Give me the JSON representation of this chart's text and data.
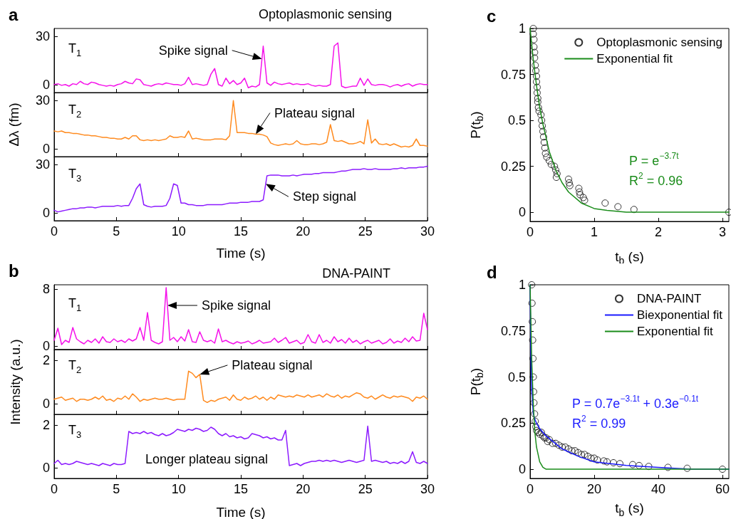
{
  "chart_data": [
    {
      "type": "line",
      "title": "Optoplasmonic sensing",
      "annotations": [
        "a",
        "T$_{1}$",
        {
          "text": "Spike signal",
          "x": 16.7,
          "y": 16
        }
      ],
      "x": [
        0,
        0.3,
        0.6,
        0.9,
        1.2,
        1.5,
        1.8,
        2.1,
        2.4,
        2.7,
        3,
        3.3,
        3.6,
        3.9,
        4.2,
        4.5,
        4.8,
        5.1,
        5.4,
        5.7,
        6,
        6.3,
        6.6,
        6.9,
        7.2,
        7.5,
        7.8,
        8.1,
        8.4,
        8.7,
        9,
        9.3,
        9.6,
        9.9,
        10.2,
        10.5,
        10.8,
        11.1,
        11.4,
        11.7,
        12,
        12.3,
        12.6,
        12.9,
        13.2,
        13.5,
        13.8,
        14.1,
        14.4,
        14.7,
        15,
        15.3,
        15.6,
        15.9,
        16.2,
        16.5,
        16.8,
        17.1,
        17.4,
        17.7,
        18,
        18.3,
        18.6,
        18.9,
        19.2,
        19.5,
        19.8,
        20.1,
        20.4,
        20.7,
        21,
        21.3,
        21.6,
        21.9,
        22.2,
        22.5,
        22.8,
        23.1,
        23.4,
        23.7,
        24,
        24.3,
        24.6,
        24.9,
        25.2,
        25.5,
        25.8,
        26.1,
        26.4,
        26.7,
        27,
        27.3,
        27.6,
        27.9,
        28.2,
        28.5,
        28.8,
        29.1,
        29.4,
        29.7,
        30
      ],
      "series": [
        {
          "color": "#f511ea",
          "values": [
            0,
            0.5,
            -0.5,
            0,
            -1,
            0.5,
            0,
            2,
            0.5,
            0,
            1.5,
            1,
            0,
            -0.5,
            -1,
            -0.5,
            -1,
            0,
            0.5,
            2,
            1,
            0.5,
            3.5,
            3,
            0,
            -0.5,
            -1,
            0,
            0.5,
            0,
            1,
            0.5,
            0,
            0,
            -0.5,
            0.5,
            4.5,
            0,
            0.5,
            0,
            -0.5,
            0,
            6.5,
            10,
            0,
            -1,
            4,
            0.5,
            2.5,
            0,
            1,
            4,
            -2,
            -1,
            -1.5,
            0,
            24,
            1,
            -0.5,
            1.5,
            0.5,
            0,
            0.5,
            1,
            0,
            0.5,
            0,
            0,
            0.5,
            -0.5,
            -1,
            -0.5,
            -1,
            -1,
            0,
            24,
            26,
            -1,
            -2,
            -1.5,
            -1,
            -1,
            4,
            -0.5,
            3.5,
            0,
            -0.5,
            0,
            0,
            -0.5,
            -1.5,
            -0.5,
            0,
            -1,
            0,
            0.5,
            -1,
            0,
            0.5,
            0,
            0
          ]
        }
      ],
      "xlim": [
        0,
        30
      ],
      "xticks": [
        0,
        5,
        10,
        15,
        20,
        25,
        30
      ],
      "ylim": [
        -5,
        35
      ],
      "yticks": [
        0,
        30
      ],
      "tick_labels": "y"
    },
    {
      "type": "line",
      "ylabel": "Δλ (fm)",
      "annotations": [
        "T$_{2}$",
        {
          "text": "Plateau signal",
          "x": 16.2,
          "y": 9
        }
      ],
      "x": [
        0,
        0.3,
        0.6,
        0.9,
        1.2,
        1.5,
        1.8,
        2.1,
        2.4,
        2.7,
        3,
        3.3,
        3.6,
        3.9,
        4.2,
        4.5,
        4.8,
        5.1,
        5.4,
        5.7,
        6,
        6.3,
        6.6,
        6.9,
        7.2,
        7.5,
        7.8,
        8.1,
        8.4,
        8.7,
        9,
        9.3,
        9.6,
        9.9,
        10.2,
        10.5,
        10.8,
        11.1,
        11.4,
        11.7,
        12,
        12.3,
        12.6,
        12.9,
        13.2,
        13.5,
        13.8,
        14.1,
        14.4,
        14.7,
        15,
        15.3,
        15.6,
        15.9,
        16.2,
        16.5,
        16.8,
        17.1,
        17.4,
        17.7,
        18,
        18.3,
        18.6,
        18.9,
        19.2,
        19.5,
        19.8,
        20.1,
        20.4,
        20.7,
        21,
        21.3,
        21.6,
        21.9,
        22.2,
        22.5,
        22.8,
        23.1,
        23.4,
        23.7,
        24,
        24.3,
        24.6,
        24.9,
        25.2,
        25.5,
        25.8,
        26.1,
        26.4,
        26.7,
        27,
        27.3,
        27.6,
        27.9,
        28.2,
        28.5,
        28.8,
        29.1,
        29.4,
        29.7,
        30
      ],
      "series": [
        {
          "color": "#ff8a1e",
          "values": [
            11,
            10.5,
            11,
            10,
            10,
            9.5,
            9.5,
            9,
            8.5,
            8.5,
            8,
            8,
            7.5,
            7,
            7,
            6.5,
            6.5,
            6,
            6,
            7,
            6,
            8,
            8,
            5.5,
            5,
            5.5,
            5,
            5.5,
            5,
            5.5,
            6,
            8,
            7,
            7,
            7.5,
            7,
            11,
            6,
            6.5,
            6,
            5.5,
            5.5,
            5.5,
            6,
            6,
            6,
            5.5,
            8,
            30,
            10,
            10,
            10,
            9.5,
            9.5,
            9,
            9,
            8.5,
            7.5,
            3.5,
            2.5,
            2,
            2.5,
            3,
            2.5,
            3,
            5,
            3,
            2.5,
            2.5,
            3,
            3,
            2.5,
            3,
            4,
            15,
            5,
            4.5,
            5,
            4,
            3,
            3,
            3.5,
            4.5,
            3,
            18,
            3.5,
            6,
            3,
            2.5,
            3,
            2,
            3,
            2,
            1,
            1.5,
            1,
            2,
            6,
            2,
            2,
            1.5
          ]
        }
      ],
      "xlim": [
        0,
        30
      ],
      "xticks": [
        0,
        5,
        10,
        15,
        20,
        25,
        30
      ],
      "ylim": [
        -5,
        35
      ],
      "yticks": [
        0,
        30
      ],
      "tick_labels": "y"
    },
    {
      "type": "line",
      "xlabel": "Time (s)",
      "annotations": [
        "T$_{3}$",
        {
          "text": "Step signal",
          "x": 17,
          "y": 18
        }
      ],
      "x": [
        0,
        0.3,
        0.6,
        0.9,
        1.2,
        1.5,
        1.8,
        2.1,
        2.4,
        2.7,
        3,
        3.3,
        3.6,
        3.9,
        4.2,
        4.5,
        4.8,
        5.1,
        5.4,
        5.7,
        6,
        6.3,
        6.6,
        6.9,
        7.2,
        7.5,
        7.8,
        8.1,
        8.4,
        8.7,
        9,
        9.3,
        9.6,
        9.9,
        10.2,
        10.5,
        10.8,
        11.1,
        11.4,
        11.7,
        12,
        12.3,
        12.6,
        12.9,
        13.2,
        13.5,
        13.8,
        14.1,
        14.4,
        14.7,
        15,
        15.3,
        15.6,
        15.9,
        16.2,
        16.5,
        16.8,
        17.1,
        17.4,
        17.7,
        18,
        18.3,
        18.6,
        18.9,
        19.2,
        19.5,
        19.8,
        20.1,
        20.4,
        20.7,
        21,
        21.3,
        21.6,
        21.9,
        22.2,
        22.5,
        22.8,
        23.1,
        23.4,
        23.7,
        24,
        24.3,
        24.6,
        24.9,
        25.2,
        25.5,
        25.8,
        26.1,
        26.4,
        26.7,
        27,
        27.3,
        27.6,
        27.9,
        28.2,
        28.5,
        28.8,
        29.1,
        29.4,
        29.7,
        30
      ],
      "series": [
        {
          "color": "#8c1aff",
          "values": [
            1.5,
            0.5,
            1,
            1.5,
            2,
            2.5,
            2.5,
            3,
            3,
            3.5,
            3.5,
            3,
            3.5,
            4,
            4,
            4,
            4,
            4.5,
            4,
            4.5,
            4.5,
            9,
            15,
            18,
            5,
            4,
            3.5,
            4,
            4,
            4,
            4.5,
            9,
            18,
            17,
            6,
            6,
            5,
            5,
            4.5,
            4.5,
            4.5,
            5,
            5,
            5,
            5,
            5,
            5.5,
            6,
            6,
            6,
            6.5,
            6.5,
            6.5,
            7,
            7,
            7,
            8,
            23,
            23.5,
            23.5,
            23.5,
            23,
            23,
            23,
            23.5,
            23,
            23.5,
            24,
            24,
            24,
            24.5,
            24.5,
            25,
            25,
            25,
            25,
            25.5,
            26,
            26,
            26.5,
            27,
            27,
            27,
            27.5,
            27,
            27,
            27.5,
            27,
            27,
            27,
            27,
            27.5,
            27.5,
            28,
            27.5,
            28,
            28,
            28,
            28.5,
            28.5,
            29
          ]
        }
      ],
      "xlim": [
        0,
        30
      ],
      "xticks": [
        0,
        5,
        10,
        15,
        20,
        25,
        30
      ],
      "ylim": [
        -5,
        35
      ],
      "yticks": [
        0,
        30
      ]
    },
    {
      "type": "line",
      "title": "DNA-PAINT",
      "annotations": [
        "b",
        "T$_{1}$",
        {
          "text": "Spike signal",
          "x": 9.1,
          "y": 5.7
        }
      ],
      "x": [
        0,
        0.3,
        0.6,
        0.9,
        1.2,
        1.5,
        1.8,
        2.1,
        2.4,
        2.7,
        3,
        3.3,
        3.6,
        3.9,
        4.2,
        4.5,
        4.8,
        5.1,
        5.4,
        5.7,
        6,
        6.3,
        6.6,
        6.9,
        7.2,
        7.5,
        7.8,
        8.1,
        8.4,
        8.7,
        9,
        9.3,
        9.6,
        9.9,
        10.2,
        10.5,
        10.8,
        11.1,
        11.4,
        11.7,
        12,
        12.3,
        12.6,
        12.9,
        13.2,
        13.5,
        13.8,
        14.1,
        14.4,
        14.7,
        15,
        15.3,
        15.6,
        15.9,
        16.2,
        16.5,
        16.8,
        17.1,
        17.4,
        17.7,
        18,
        18.3,
        18.6,
        18.9,
        19.2,
        19.5,
        19.8,
        20.1,
        20.4,
        20.7,
        21,
        21.3,
        21.6,
        21.9,
        22.2,
        22.5,
        22.8,
        23.1,
        23.4,
        23.7,
        24,
        24.3,
        24.6,
        24.9,
        25.2,
        25.5,
        25.8,
        26.1,
        26.4,
        26.7,
        27,
        27.3,
        27.6,
        27.9,
        28.2,
        28.5,
        28.8,
        29.1,
        29.4,
        29.7,
        30
      ],
      "series": [
        {
          "color": "#f511ea",
          "values": [
            0.8,
            2.5,
            0.2,
            0.8,
            0.5,
            2.6,
            1,
            0.6,
            0.3,
            0.8,
            0.5,
            1,
            0.4,
            1.3,
            0.6,
            0.5,
            1,
            0.6,
            0.8,
            0.5,
            1,
            0.7,
            1,
            2.6,
            0.8,
            4.7,
            0.8,
            0.5,
            0.3,
            0.6,
            8.2,
            0.8,
            1.2,
            0.6,
            1.3,
            0.7,
            2.3,
            0.6,
            0.5,
            2,
            0.8,
            0.6,
            0.8,
            0.4,
            2.4,
            0.6,
            0.8,
            0.5,
            0.3,
            0.6,
            0.4,
            0.5,
            0.7,
            0.3,
            0.5,
            0.8,
            0.4,
            0.5,
            0.6,
            1.1,
            0.5,
            0.8,
            1.2,
            0.4,
            0.6,
            0.8,
            0.3,
            0.5,
            1.6,
            0.6,
            0.4,
            1.6,
            0.5,
            0.8,
            0.4,
            1.3,
            0.6,
            0.9,
            0.4,
            1.1,
            0.5,
            0.8,
            0.3,
            0.6,
            0.8,
            0.4,
            0.6,
            0.8,
            0.3,
            0.5,
            1,
            0.4,
            0.7,
            0.5,
            1.1,
            0.6,
            1.3,
            0.7,
            0.8,
            4.6,
            2.3
          ]
        }
      ],
      "xlim": [
        0,
        30
      ],
      "xticks": [
        0,
        5,
        10,
        15,
        20,
        25,
        30
      ],
      "ylim": [
        -0.5,
        8.6
      ],
      "yticks": [
        0,
        8
      ],
      "tick_labels": "y"
    },
    {
      "type": "line",
      "ylabel": "Intensity (a.u.)",
      "annotations": [
        "T$_{2}$",
        {
          "text": "Plateau signal",
          "x": 11.7,
          "y": 1.35
        }
      ],
      "x": [
        0,
        0.3,
        0.6,
        0.9,
        1.2,
        1.5,
        1.8,
        2.1,
        2.4,
        2.7,
        3,
        3.3,
        3.6,
        3.9,
        4.2,
        4.5,
        4.8,
        5.1,
        5.4,
        5.7,
        6,
        6.3,
        6.6,
        6.9,
        7.2,
        7.5,
        7.8,
        8.1,
        8.4,
        8.7,
        9,
        9.3,
        9.6,
        9.9,
        10.2,
        10.5,
        10.8,
        11.1,
        11.4,
        11.7,
        12,
        12.3,
        12.6,
        12.9,
        13.2,
        13.5,
        13.8,
        14.1,
        14.4,
        14.7,
        15,
        15.3,
        15.6,
        15.9,
        16.2,
        16.5,
        16.8,
        17.1,
        17.4,
        17.7,
        18,
        18.3,
        18.6,
        18.9,
        19.2,
        19.5,
        19.8,
        20.1,
        20.4,
        20.7,
        21,
        21.3,
        21.6,
        21.9,
        22.2,
        22.5,
        22.8,
        23.1,
        23.4,
        23.7,
        24,
        24.3,
        24.6,
        24.9,
        25.2,
        25.5,
        25.8,
        26.1,
        26.4,
        26.7,
        27,
        27.3,
        27.6,
        27.9,
        28.2,
        28.5,
        28.8,
        29.1,
        29.4,
        29.7,
        30
      ],
      "series": [
        {
          "color": "#ff8a1e",
          "values": [
            0.2,
            0.25,
            0.3,
            0.15,
            0.2,
            0.25,
            0.1,
            0.2,
            0.2,
            0.15,
            0.2,
            0.3,
            0.2,
            0.35,
            0.15,
            0.2,
            0.1,
            0.25,
            0.2,
            0.35,
            0.2,
            0.45,
            0.3,
            0.1,
            0.2,
            0.15,
            0.2,
            0.25,
            0.2,
            0.2,
            0.25,
            0.2,
            0.15,
            0.2,
            0.2,
            0.2,
            1.5,
            1.4,
            1.2,
            1.35,
            0.15,
            0.05,
            0.15,
            0.1,
            0.2,
            0.25,
            0.3,
            0.15,
            0.4,
            0.2,
            0.15,
            0.3,
            0.2,
            0.25,
            0.35,
            0.2,
            0.3,
            0.15,
            0.3,
            0.2,
            0.4,
            0.35,
            0.3,
            0.35,
            0.3,
            0.4,
            0.35,
            0.3,
            0.4,
            0.3,
            0.35,
            0.4,
            0.3,
            0.45,
            0.35,
            0.3,
            0.4,
            0.25,
            0.35,
            0.3,
            0.4,
            0.5,
            0.45,
            0.3,
            0.25,
            0.35,
            0.2,
            0.3,
            0.4,
            0.3,
            0.25,
            0.35,
            0.3,
            0.35,
            0.3,
            0.25,
            0.1,
            0.3,
            0.25,
            0.35,
            0.2
          ]
        }
      ],
      "xlim": [
        0,
        30
      ],
      "xticks": [
        0,
        5,
        10,
        15,
        20,
        25,
        30
      ],
      "ylim": [
        -0.5,
        2.5
      ],
      "yticks": [
        0,
        2
      ],
      "tick_labels": "y"
    },
    {
      "type": "line",
      "xlabel": "Time (s)",
      "annotations": [
        "T$_{3}$",
        "Longer plateau signal"
      ],
      "x": [
        0,
        0.3,
        0.6,
        0.9,
        1.2,
        1.5,
        1.8,
        2.1,
        2.4,
        2.7,
        3,
        3.3,
        3.6,
        3.9,
        4.2,
        4.5,
        4.8,
        5.1,
        5.4,
        5.7,
        6,
        6.3,
        6.6,
        6.9,
        7.2,
        7.5,
        7.8,
        8.1,
        8.4,
        8.7,
        9,
        9.3,
        9.6,
        9.9,
        10.2,
        10.5,
        10.8,
        11.1,
        11.4,
        11.7,
        12,
        12.3,
        12.6,
        12.9,
        13.2,
        13.5,
        13.8,
        14.1,
        14.4,
        14.7,
        15,
        15.3,
        15.6,
        15.9,
        16.2,
        16.5,
        16.8,
        17.1,
        17.4,
        17.7,
        18,
        18.3,
        18.6,
        18.9,
        19.2,
        19.5,
        19.8,
        20.1,
        20.4,
        20.7,
        21,
        21.3,
        21.6,
        21.9,
        22.2,
        22.5,
        22.8,
        23.1,
        23.4,
        23.7,
        24,
        24.3,
        24.6,
        24.9,
        25.2,
        25.5,
        25.8,
        26.1,
        26.4,
        26.7,
        27,
        27.3,
        27.6,
        27.9,
        28.2,
        28.5,
        28.8,
        29.1,
        29.4,
        29.7,
        30
      ],
      "series": [
        {
          "color": "#8c1aff",
          "values": [
            0.2,
            0.35,
            0.15,
            0.2,
            0.15,
            0.2,
            0.3,
            0.25,
            0.2,
            0.15,
            0.2,
            0.15,
            0.1,
            0.2,
            0.15,
            0.1,
            0.2,
            0.15,
            0.15,
            0.2,
            1.7,
            1.6,
            1.65,
            1.6,
            1.7,
            1.6,
            1.65,
            1.55,
            1.5,
            1.6,
            1.5,
            1.55,
            1.65,
            1.8,
            1.75,
            1.7,
            1.8,
            1.75,
            1.85,
            1.8,
            1.7,
            1.75,
            1.9,
            1.8,
            1.6,
            1.5,
            1.6,
            1.45,
            1.5,
            1.4,
            1.45,
            1.35,
            1.4,
            1.6,
            1.55,
            1.5,
            1.4,
            1.45,
            1.35,
            1.4,
            1.3,
            1.3,
            1.75,
            0.1,
            0.15,
            0.2,
            0.1,
            0.2,
            0.25,
            0.3,
            0.3,
            0.35,
            0.3,
            0.35,
            0.3,
            0.35,
            0.3,
            0.25,
            0.3,
            0.35,
            0.3,
            0.25,
            0.3,
            0.35,
            1.95,
            0.3,
            0.35,
            0.3,
            0.25,
            0.3,
            0.2,
            0.25,
            0.2,
            0.3,
            0.2,
            0.3,
            0.75,
            0.25,
            0.2,
            0.3,
            0.2
          ]
        }
      ],
      "xlim": [
        0,
        30
      ],
      "xticks": [
        0,
        5,
        10,
        15,
        20,
        25,
        30
      ],
      "ylim": [
        -0.5,
        2.5
      ],
      "yticks": [
        0,
        2
      ]
    },
    {
      "type": "scatter",
      "xlabel": "t$_{b}$ (s)",
      "ylabel": "P(t$_{b}$)",
      "annotations": [
        "c",
        "P = e$^{−3.7t}$",
        "R$^{2}$ = 0.96"
      ],
      "series": [
        {
          "name": "Optoplasmonic sensing",
          "color": "#000000",
          "marker": "circle",
          "x": [
            0.05,
            0.05,
            0.06,
            0.06,
            0.07,
            0.07,
            0.08,
            0.09,
            0.1,
            0.1,
            0.11,
            0.11,
            0.12,
            0.12,
            0.13,
            0.14,
            0.17,
            0.18,
            0.19,
            0.2,
            0.21,
            0.22,
            0.23,
            0.24,
            0.26,
            0.3,
            0.33,
            0.38,
            0.4,
            0.42,
            0.41,
            0.6,
            0.61,
            0.62,
            0.76,
            0.77,
            0.78,
            0.83,
            0.85,
            1.17,
            1.37,
            1.62,
            3.1
          ],
          "values": [
            1,
            0.97,
            0.94,
            0.9,
            0.87,
            0.84,
            0.8,
            0.77,
            0.74,
            0.71,
            0.68,
            0.65,
            0.62,
            0.6,
            0.57,
            0.55,
            0.53,
            0.5,
            0.47,
            0.44,
            0.41,
            0.38,
            0.35,
            0.32,
            0.3,
            0.28,
            0.26,
            0.25,
            0.23,
            0.21,
            0.19,
            0.18,
            0.16,
            0.145,
            0.13,
            0.11,
            0.095,
            0.08,
            0.065,
            0.05,
            0.03,
            0.015,
            0
          ]
        },
        {
          "type": "line",
          "name": "Exponential fit",
          "color": "#1a8c1a",
          "x": [
            0,
            0.05,
            0.1,
            0.15,
            0.2,
            0.3,
            0.4,
            0.5,
            0.6,
            0.8,
            1,
            1.2,
            1.5,
            2,
            2.5,
            3.1
          ],
          "values": [
            1,
            0.83,
            0.69,
            0.57,
            0.48,
            0.33,
            0.23,
            0.16,
            0.11,
            0.05,
            0.02,
            0.01,
            0,
            0,
            0,
            0
          ]
        }
      ],
      "xlim": [
        0,
        3.1
      ],
      "xticks": [
        0,
        1,
        2,
        3
      ],
      "ylim": [
        -0.05,
        1
      ],
      "yticks": [
        0,
        0.25,
        0.5,
        0.75,
        1
      ],
      "legend": "top right"
    },
    {
      "type": "scatter",
      "xlabel": "t$_{b}$ (s)",
      "ylabel": "P(t$_{b}$)",
      "annotations": [
        "d",
        "P = 0.7e$^{−3.1t}$ + 0.3e$^{−0.1t}$",
        "R$^{2}$ = 0.99"
      ],
      "series": [
        {
          "name": "DNA-PAINT",
          "color": "#000000",
          "marker": "circle",
          "x": [
            0.5,
            0.6,
            0.7,
            0.8,
            0.9,
            1,
            1.1,
            1.2,
            1.4,
            1.6,
            1.8,
            2,
            2.5,
            3,
            3.5,
            4,
            4.5,
            5,
            5.5,
            6,
            7,
            8,
            9,
            10,
            11,
            12,
            13,
            14,
            15,
            16,
            17,
            18,
            19,
            20,
            21,
            23,
            24,
            26,
            28,
            32,
            34,
            37,
            43,
            49,
            60
          ],
          "values": [
            1,
            0.9,
            0.8,
            0.7,
            0.6,
            0.5,
            0.42,
            0.36,
            0.3,
            0.26,
            0.23,
            0.21,
            0.2,
            0.19,
            0.2,
            0.18,
            0.17,
            0.17,
            0.15,
            0.16,
            0.14,
            0.14,
            0.13,
            0.12,
            0.12,
            0.11,
            0.1,
            0.1,
            0.09,
            0.08,
            0.08,
            0.07,
            0.06,
            0.06,
            0.05,
            0.045,
            0.04,
            0.035,
            0.03,
            0.025,
            0.02,
            0.015,
            0.01,
            0.005,
            0
          ]
        },
        {
          "type": "line",
          "name": "Biexponential fit",
          "color": "#1a1aff",
          "x": [
            0,
            0.25,
            0.5,
            1,
            1.5,
            2,
            3,
            5,
            10,
            15,
            20,
            30,
            40,
            50,
            62
          ],
          "values": [
            1,
            0.62,
            0.43,
            0.3,
            0.27,
            0.25,
            0.22,
            0.18,
            0.11,
            0.07,
            0.04,
            0.02,
            0.01,
            0,
            0
          ]
        },
        {
          "type": "line",
          "name": "Exponential fit",
          "color": "#1a8c1a",
          "x": [
            0,
            0.5,
            1,
            1.5,
            2,
            3,
            4,
            5,
            62
          ],
          "values": [
            1,
            0.6,
            0.35,
            0.2,
            0.12,
            0.04,
            0.01,
            0,
            0
          ]
        }
      ],
      "xlim": [
        0,
        62
      ],
      "xticks": [
        0,
        20,
        40,
        60
      ],
      "ylim": [
        -0.05,
        1
      ],
      "yticks": [
        0,
        0.25,
        0.5,
        0.75,
        1
      ],
      "legend": "top right"
    }
  ]
}
